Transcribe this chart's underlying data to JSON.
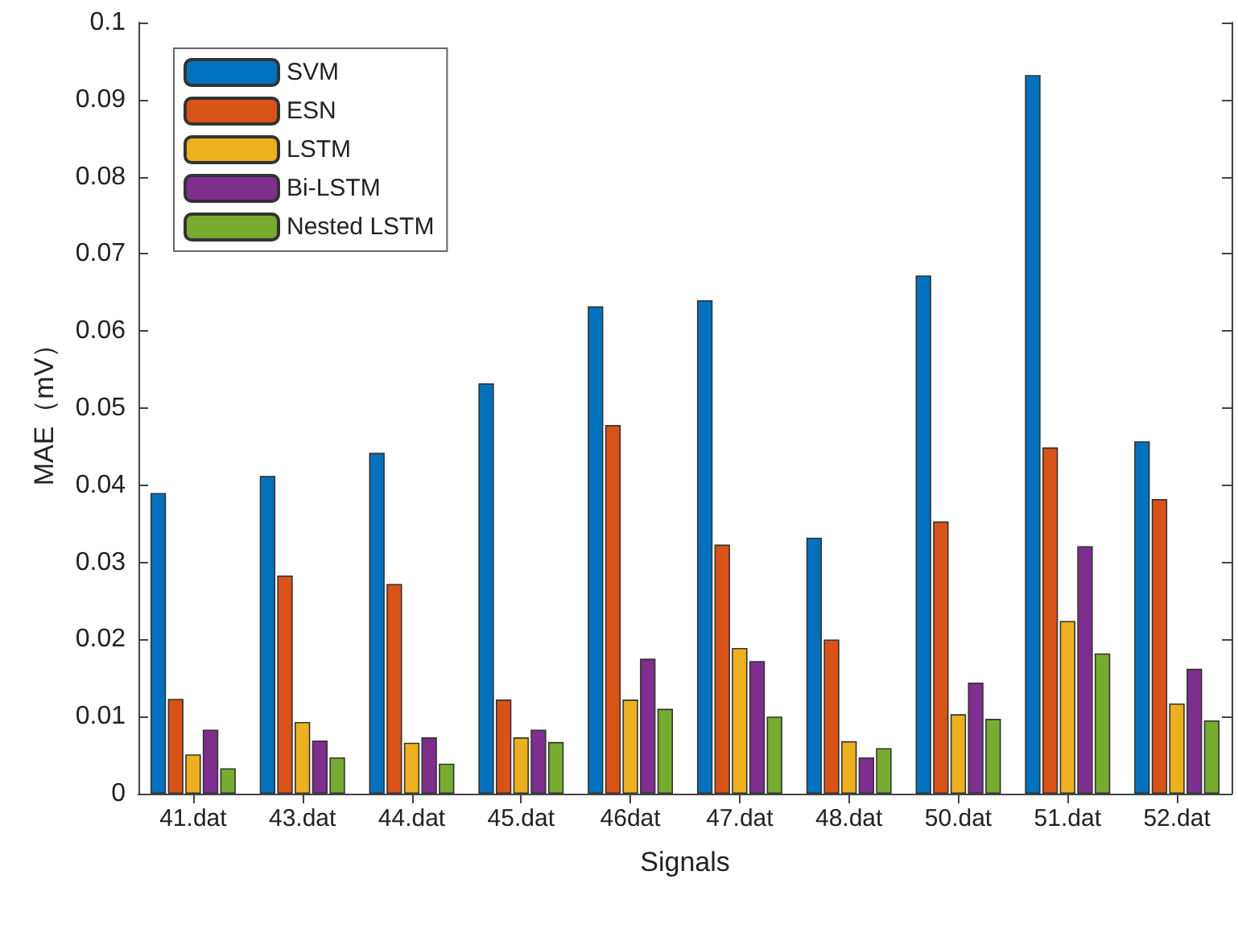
{
  "chart_data": {
    "type": "bar",
    "xlabel": "Signals",
    "ylabel": "MAE（mV）",
    "categories": [
      "41.dat",
      "43.dat",
      "44.dat",
      "45.dat",
      "46dat",
      "47.dat",
      "48.dat",
      "50.dat",
      "51.dat",
      "52.dat"
    ],
    "series": [
      {
        "name": "SVM",
        "color": "#0072bd",
        "values": [
          0.039,
          0.0412,
          0.0442,
          0.0532,
          0.0632,
          0.064,
          0.0332,
          0.0672,
          0.0932,
          0.0457
        ]
      },
      {
        "name": "ESN",
        "color": "#d95319",
        "values": [
          0.0123,
          0.0283,
          0.0272,
          0.0122,
          0.0478,
          0.0323,
          0.02,
          0.0353,
          0.0449,
          0.0382
        ]
      },
      {
        "name": "LSTM",
        "color": "#edb120",
        "values": [
          0.0051,
          0.0093,
          0.0066,
          0.0073,
          0.0122,
          0.0189,
          0.0068,
          0.0103,
          0.0224,
          0.0117
        ]
      },
      {
        "name": "Bi-LSTM",
        "color": "#7e2f8e",
        "values": [
          0.0083,
          0.0069,
          0.0073,
          0.0083,
          0.0175,
          0.0172,
          0.0047,
          0.0144,
          0.0321,
          0.0162
        ]
      },
      {
        "name": "Nested LSTM",
        "color": "#77ac30",
        "values": [
          0.0033,
          0.0047,
          0.0039,
          0.0067,
          0.011,
          0.01,
          0.0059,
          0.0097,
          0.0182,
          0.0095
        ]
      }
    ],
    "ylim": [
      0,
      0.1
    ],
    "yticks": [
      0,
      0.01,
      0.02,
      0.03,
      0.04,
      0.05,
      0.06,
      0.07,
      0.08,
      0.09,
      0.1
    ],
    "grid": false,
    "legend": "top left"
  }
}
